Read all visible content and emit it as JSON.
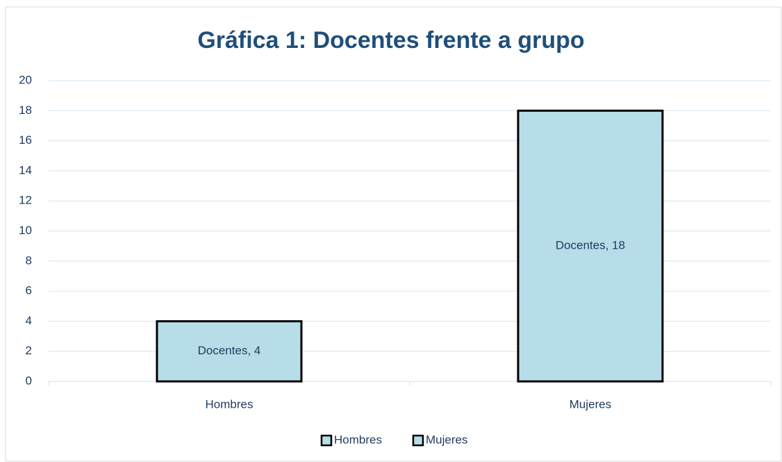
{
  "chart_data": {
    "type": "bar",
    "title": "Gráfica 1: Docentes frente a grupo",
    "categories": [
      "Hombres",
      "Mujeres"
    ],
    "values": [
      4,
      18
    ],
    "value_labels": [
      "Docentes, 4",
      "Docentes, 18"
    ],
    "color": "#b7dde8",
    "edgecolor": "#000000",
    "ylim": [
      0,
      20
    ],
    "yticks": [
      0,
      2,
      4,
      6,
      8,
      10,
      12,
      14,
      16,
      18,
      20
    ],
    "grid": true,
    "legend": "bottom"
  }
}
